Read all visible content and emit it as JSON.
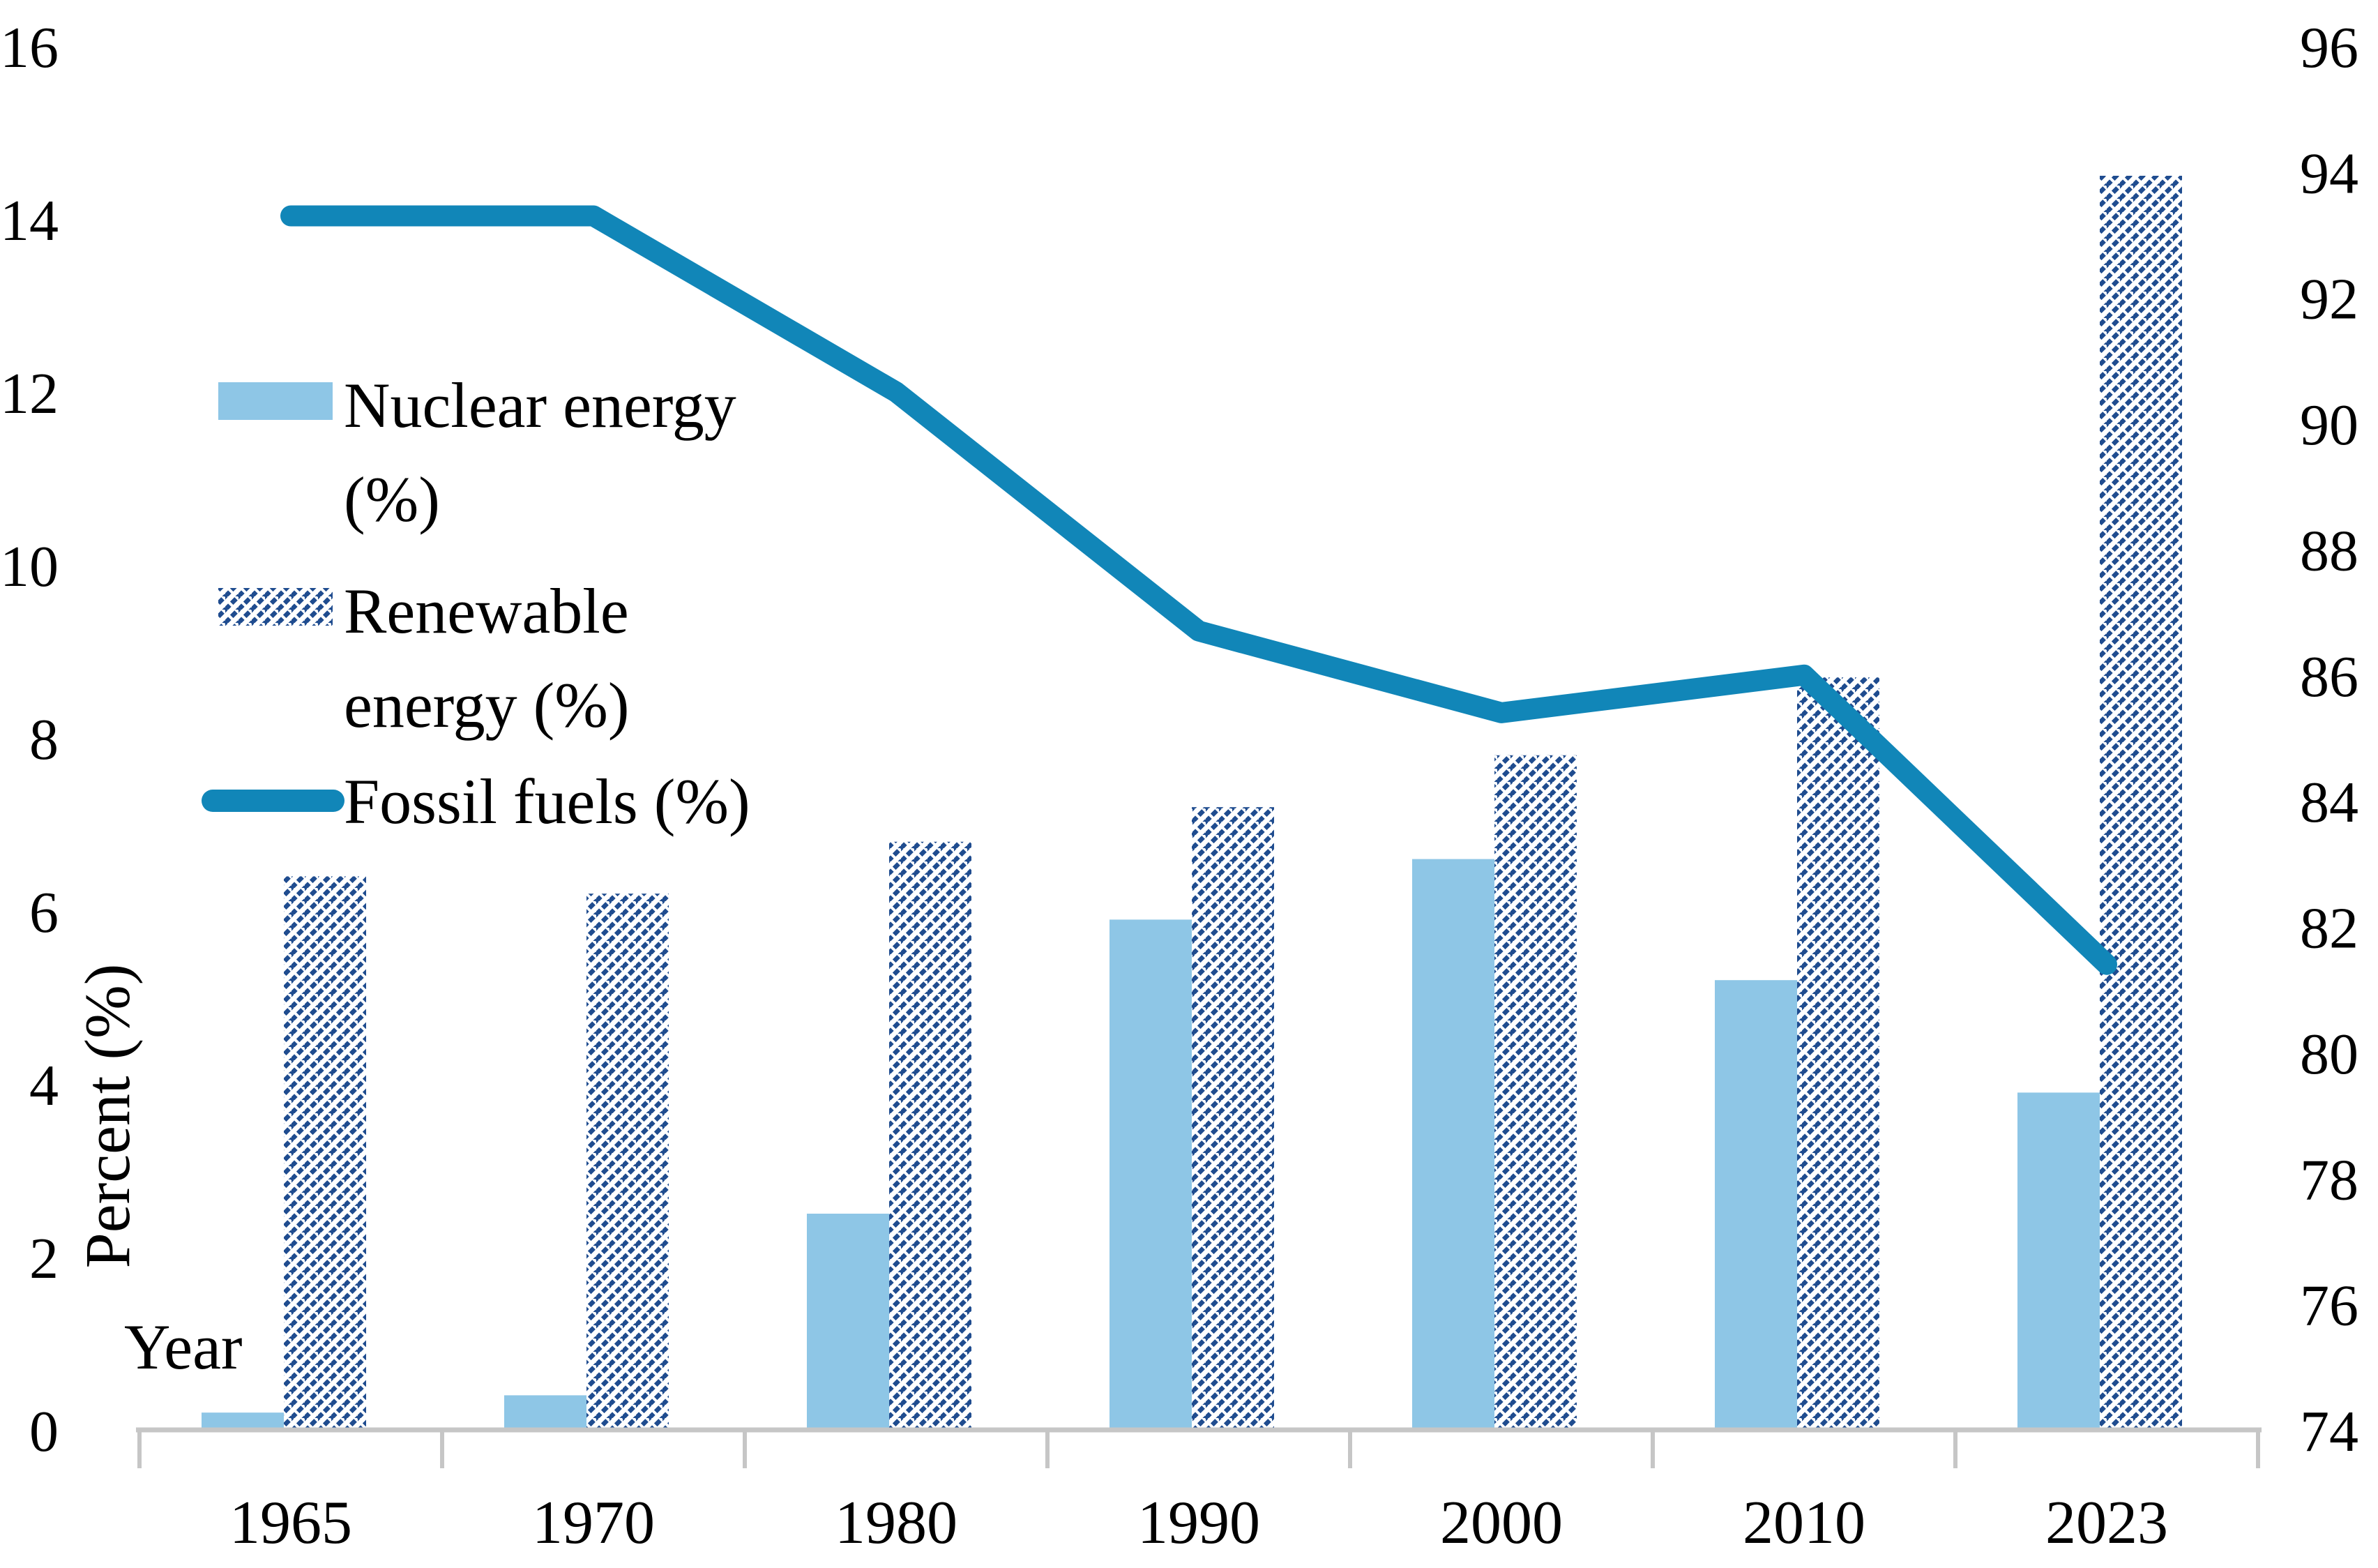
{
  "chart_data": {
    "type": "combo-bar-line",
    "title": "",
    "categories": [
      "1965",
      "1970",
      "1980",
      "1990",
      "2000",
      "2010",
      "2023"
    ],
    "series": [
      {
        "name": "Nuclear energy (%)",
        "type": "bar",
        "axis": "left",
        "style": "solid",
        "color": "#8EC6E6",
        "values": [
          0.2,
          0.4,
          2.5,
          5.9,
          6.6,
          5.2,
          3.9
        ]
      },
      {
        "name": "Renewable energy (%)",
        "type": "bar",
        "axis": "left",
        "style": "hatched",
        "color": "#1F4C8F",
        "values": [
          6.4,
          6.2,
          6.8,
          7.2,
          7.8,
          8.7,
          14.5
        ]
      },
      {
        "name": "Fossil fuels (%)",
        "type": "line",
        "axis": "right",
        "color": "#1186B8",
        "values": [
          93.3,
          93.3,
          90.5,
          86.7,
          85.4,
          86.0,
          81.4
        ]
      }
    ],
    "left_axis": {
      "label": "Percent (%)",
      "min": 0,
      "max": 16,
      "step": 2,
      "tick_labels": [
        "0",
        "2",
        "4",
        "6",
        "8",
        "10",
        "12",
        "14",
        "16"
      ]
    },
    "right_axis": {
      "min": 74,
      "max": 96,
      "step": 2,
      "tick_labels": [
        "74",
        "76",
        "78",
        "80",
        "82",
        "84",
        "86",
        "88",
        "90",
        "92",
        "94",
        "96"
      ]
    },
    "x_axis": {
      "label": "Year"
    },
    "legend": [
      {
        "key": "nuclear",
        "lines": [
          "Nuclear energy",
          "(%)"
        ]
      },
      {
        "key": "renewable",
        "lines": [
          "Renewable",
          "energy (%)"
        ]
      },
      {
        "key": "fossil",
        "lines": [
          "Fossil fuels (%)"
        ]
      }
    ],
    "grid": false,
    "legend_position": "upper-left-inside",
    "colors": {
      "nuclear_bar": "#8EC6E6",
      "renewable_hatch": "#1F4C8F",
      "fossil_line": "#1186B8",
      "axis_line": "#C6C6C6",
      "text": "#000000"
    }
  }
}
